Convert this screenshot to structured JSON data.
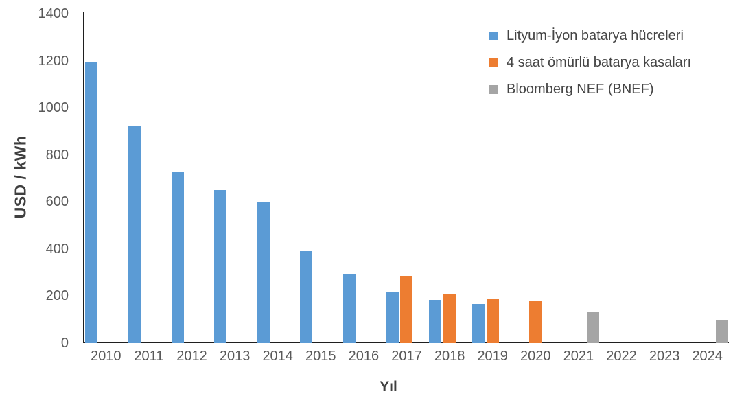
{
  "chart": {
    "background": "#ffffff",
    "spine_color": "#1f1f1f",
    "axis_text_color": "#595959",
    "axis_title_color": "#3f3f3f"
  },
  "chart_data": {
    "type": "bar",
    "title": "",
    "xlabel": "Yıl",
    "ylabel": "USD / kWh",
    "ylim": [
      0,
      1400
    ],
    "yticks": [
      0,
      200,
      400,
      600,
      800,
      1000,
      1200,
      1400
    ],
    "grid": false,
    "legend_position": "top-right",
    "categories": [
      "2010",
      "2011",
      "2012",
      "2013",
      "2014",
      "2015",
      "2016",
      "2017",
      "2018",
      "2019",
      "2020",
      "2021",
      "2022",
      "2023",
      "2024"
    ],
    "series": [
      {
        "name": "Lityum-İyon batarya hücreleri",
        "color": "#5B9BD5",
        "values": [
          1195,
          925,
          725,
          650,
          600,
          390,
          295,
          220,
          185,
          165,
          null,
          null,
          null,
          null,
          null
        ]
      },
      {
        "name": "4 saat ömürlü batarya kasaları",
        "color": "#ED7D31",
        "values": [
          null,
          null,
          null,
          null,
          null,
          null,
          null,
          285,
          210,
          190,
          180,
          null,
          null,
          null,
          null
        ]
      },
      {
        "name": "Bloomberg NEF (BNEF)",
        "color": "#A5A5A5",
        "values": [
          null,
          null,
          null,
          null,
          null,
          null,
          null,
          null,
          null,
          null,
          null,
          135,
          null,
          null,
          100
        ]
      }
    ]
  }
}
